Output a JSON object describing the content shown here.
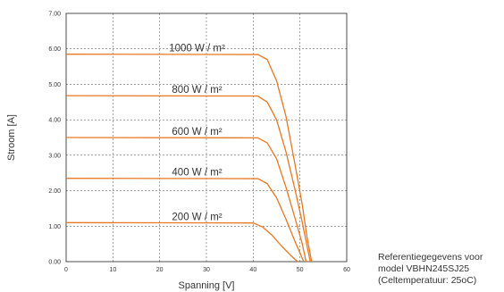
{
  "chart_data": {
    "type": "line",
    "xlabel": "Spanning [V]",
    "ylabel": "Stroom [A]",
    "xlim": [
      0,
      60
    ],
    "ylim": [
      0,
      7
    ],
    "x_ticks": [
      "0",
      "10",
      "20",
      "30",
      "40",
      "50",
      "60"
    ],
    "y_ticks": [
      "0.00",
      "1.00",
      "2.00",
      "3.00",
      "4.00",
      "5.00",
      "6.00",
      "7.00"
    ],
    "grid": true,
    "line_color": "#E87722",
    "series": [
      {
        "name": "1000 W / m²",
        "x": [
          0,
          41,
          43,
          45,
          47,
          49,
          50.5,
          51.5,
          52.5
        ],
        "y": [
          5.85,
          5.84,
          5.7,
          5.1,
          4.1,
          2.7,
          1.6,
          0.7,
          0
        ]
      },
      {
        "name": "800 W / m²",
        "x": [
          0,
          41,
          43,
          45,
          47,
          49,
          50.5,
          51.5,
          52.2
        ],
        "y": [
          4.68,
          4.67,
          4.5,
          4.0,
          3.1,
          2.0,
          1.1,
          0.45,
          0
        ]
      },
      {
        "name": "600 W / m²",
        "x": [
          0,
          41,
          43,
          45,
          47,
          49,
          50.5,
          51.3
        ],
        "y": [
          3.5,
          3.49,
          3.35,
          2.9,
          2.1,
          1.2,
          0.5,
          0
        ]
      },
      {
        "name": "400 W / m²",
        "x": [
          0,
          41,
          43,
          45,
          47,
          49,
          50,
          50.8
        ],
        "y": [
          2.35,
          2.34,
          2.2,
          1.8,
          1.2,
          0.55,
          0.25,
          0
        ]
      },
      {
        "name": "200 W / m²",
        "x": [
          0,
          40,
          42,
          44,
          46,
          48,
          49.5
        ],
        "y": [
          1.1,
          1.09,
          0.98,
          0.75,
          0.45,
          0.18,
          0
        ]
      }
    ]
  },
  "note": {
    "line1": "Referentiegegevens voor",
    "line2": "model VBHN245SJ25",
    "line3": "(Celtemperatuur: 25oC)"
  }
}
